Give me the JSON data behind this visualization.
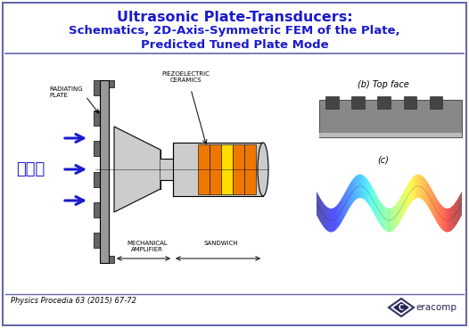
{
  "title_line1": "Ultrasonic Plate-Transducers:",
  "title_line2": "Schematics, 2D-Axis-Symmetric FEM of the Plate,",
  "title_line3": "Predicted Tuned Plate Mode",
  "title_color": "#1a1acc",
  "bg_color": "#ffffff",
  "border_color": "#6666aa",
  "blue_arrow_color": "#1a1acc",
  "korean_text": "씻음파",
  "label_radiating": "RADIATING\nPLATE",
  "label_piezo": "PIEZOELECTRIC\nCERAMICS",
  "label_mech": "MECHANICAL\nAMPLIFIER",
  "label_sandwich": "SANDWICH",
  "label_top_face": "(b) Top face",
  "label_c": "(c)",
  "label_citation": "Physics Procedia 63 (2015) 67-72",
  "label_ceracomp": "eracomp",
  "orange_color": "#ee7700",
  "yellow_color": "#ffdd00",
  "body_color": "#cccccc",
  "dark_gray": "#666666",
  "mid_gray": "#999999",
  "figsize": [
    5.26,
    3.68
  ],
  "dpi": 100
}
